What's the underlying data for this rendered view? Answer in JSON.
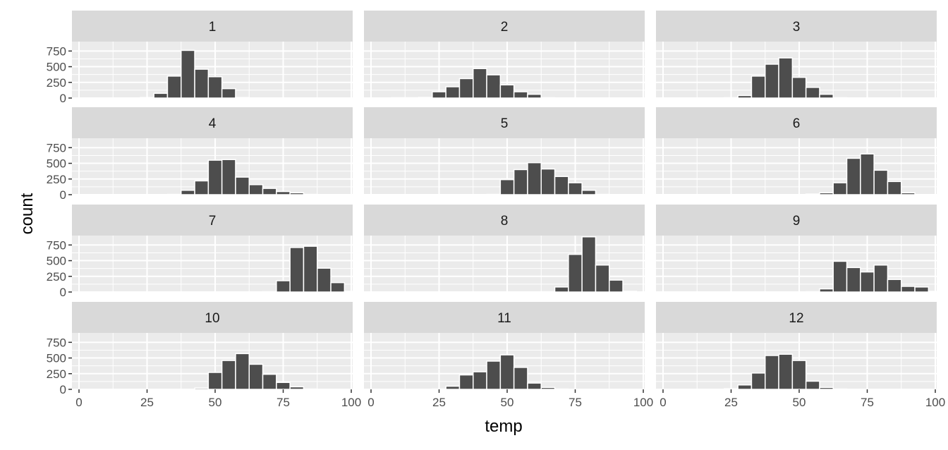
{
  "chart_data": {
    "type": "bar",
    "subtype": "faceted-histogram",
    "xlabel": "temp",
    "ylabel": "count",
    "xlim": [
      0,
      100
    ],
    "ylim": [
      0,
      900
    ],
    "x_ticks": [
      "0",
      "25",
      "50",
      "75",
      "100"
    ],
    "y_ticks": [
      "0",
      "250",
      "500",
      "750"
    ],
    "grid": true,
    "bin_width": 5,
    "colors": {
      "bar_fill": "#4d4d4d",
      "panel_bg": "#ebebeb",
      "strip_bg": "#d9d9d9",
      "grid": "#ffffff"
    },
    "facets": [
      {
        "label": "1",
        "bins": [
          [
            20,
            2
          ],
          [
            25,
            8
          ],
          [
            30,
            75
          ],
          [
            35,
            350
          ],
          [
            40,
            760
          ],
          [
            45,
            460
          ],
          [
            50,
            340
          ],
          [
            55,
            150
          ],
          [
            60,
            8
          ]
        ]
      },
      {
        "label": "2",
        "bins": [
          [
            10,
            5
          ],
          [
            15,
            5
          ],
          [
            20,
            10
          ],
          [
            25,
            100
          ],
          [
            30,
            180
          ],
          [
            35,
            310
          ],
          [
            40,
            470
          ],
          [
            45,
            370
          ],
          [
            50,
            210
          ],
          [
            55,
            100
          ],
          [
            60,
            60
          ],
          [
            65,
            5
          ]
        ]
      },
      {
        "label": "3",
        "bins": [
          [
            25,
            5
          ],
          [
            30,
            40
          ],
          [
            35,
            350
          ],
          [
            40,
            540
          ],
          [
            45,
            640
          ],
          [
            50,
            330
          ],
          [
            55,
            170
          ],
          [
            60,
            60
          ],
          [
            65,
            5
          ]
        ]
      },
      {
        "label": "4",
        "bins": [
          [
            35,
            5
          ],
          [
            40,
            70
          ],
          [
            45,
            220
          ],
          [
            50,
            550
          ],
          [
            55,
            560
          ],
          [
            60,
            280
          ],
          [
            65,
            160
          ],
          [
            70,
            100
          ],
          [
            75,
            50
          ],
          [
            80,
            30
          ],
          [
            85,
            5
          ]
        ]
      },
      {
        "label": "5",
        "bins": [
          [
            45,
            5
          ],
          [
            50,
            240
          ],
          [
            55,
            400
          ],
          [
            60,
            510
          ],
          [
            65,
            410
          ],
          [
            70,
            290
          ],
          [
            75,
            190
          ],
          [
            80,
            70
          ],
          [
            85,
            5
          ]
        ]
      },
      {
        "label": "6",
        "bins": [
          [
            55,
            10
          ],
          [
            60,
            30
          ],
          [
            65,
            190
          ],
          [
            70,
            580
          ],
          [
            75,
            650
          ],
          [
            80,
            390
          ],
          [
            85,
            210
          ],
          [
            90,
            30
          ]
        ]
      },
      {
        "label": "7",
        "bins": [
          [
            70,
            5
          ],
          [
            75,
            180
          ],
          [
            80,
            710
          ],
          [
            85,
            730
          ],
          [
            90,
            380
          ],
          [
            95,
            150
          ],
          [
            100,
            10
          ]
        ]
      },
      {
        "label": "8",
        "bins": [
          [
            65,
            5
          ],
          [
            70,
            80
          ],
          [
            75,
            600
          ],
          [
            80,
            880
          ],
          [
            85,
            430
          ],
          [
            90,
            190
          ],
          [
            95,
            10
          ]
        ]
      },
      {
        "label": "9",
        "bins": [
          [
            55,
            5
          ],
          [
            60,
            50
          ],
          [
            65,
            490
          ],
          [
            70,
            390
          ],
          [
            75,
            320
          ],
          [
            80,
            430
          ],
          [
            85,
            200
          ],
          [
            90,
            90
          ],
          [
            95,
            80
          ],
          [
            100,
            10
          ]
        ]
      },
      {
        "label": "10",
        "bins": [
          [
            45,
            20
          ],
          [
            50,
            270
          ],
          [
            55,
            460
          ],
          [
            60,
            570
          ],
          [
            65,
            400
          ],
          [
            70,
            240
          ],
          [
            75,
            110
          ],
          [
            80,
            40
          ],
          [
            85,
            5
          ]
        ]
      },
      {
        "label": "11",
        "bins": [
          [
            25,
            5
          ],
          [
            30,
            50
          ],
          [
            35,
            230
          ],
          [
            40,
            280
          ],
          [
            45,
            450
          ],
          [
            50,
            550
          ],
          [
            55,
            350
          ],
          [
            60,
            100
          ],
          [
            65,
            30
          ],
          [
            70,
            5
          ]
        ]
      },
      {
        "label": "12",
        "bins": [
          [
            25,
            10
          ],
          [
            30,
            70
          ],
          [
            35,
            260
          ],
          [
            40,
            540
          ],
          [
            45,
            560
          ],
          [
            50,
            460
          ],
          [
            55,
            130
          ],
          [
            60,
            30
          ],
          [
            65,
            5
          ]
        ]
      }
    ]
  }
}
